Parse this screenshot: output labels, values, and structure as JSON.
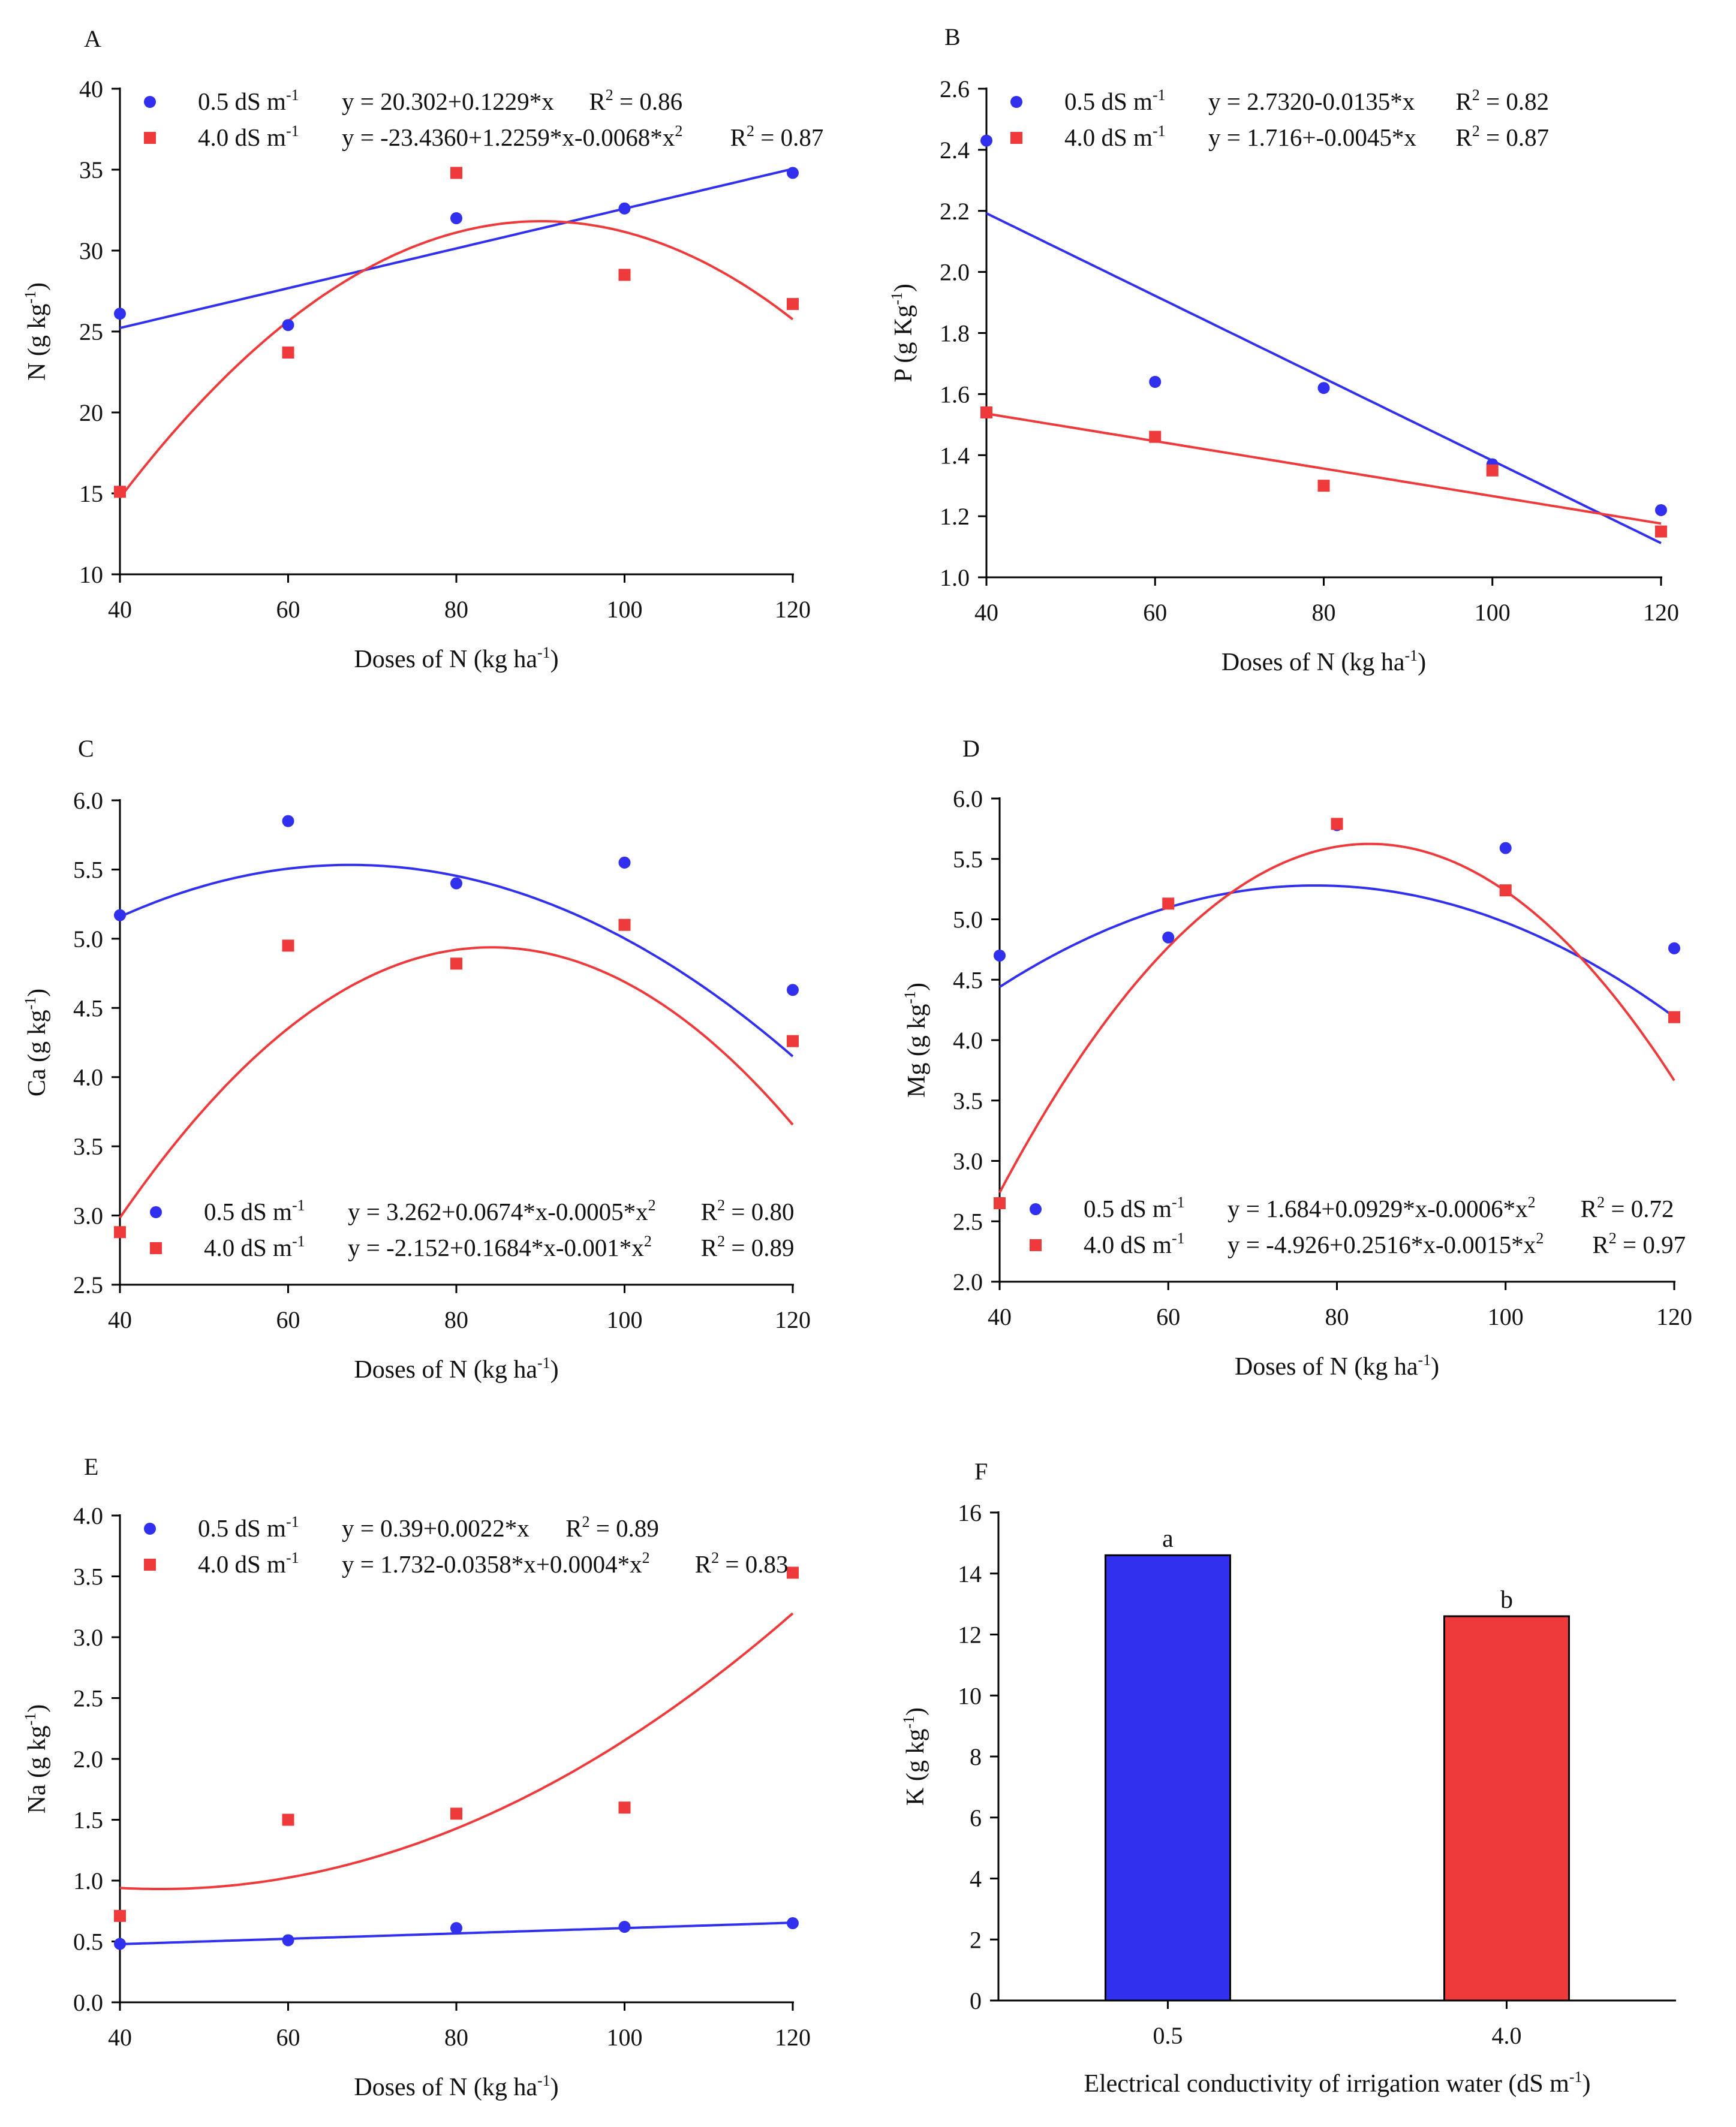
{
  "colors": {
    "low": "#3030ee",
    "high": "#ee3a3a",
    "axis": "#000000"
  },
  "chart_data": [
    {
      "id": "A",
      "type": "scatter",
      "panel_label": "A",
      "xlabel": "Doses of N (kg ha",
      "xlabel_sup": "-1",
      "xlabel_end": ")",
      "ylabel": "N (g kg",
      "ylabel_sup": "-1",
      "ylabel_end": ")",
      "xlim": [
        40,
        120
      ],
      "ylim": [
        10,
        40
      ],
      "xticks": [
        40,
        60,
        80,
        100,
        120
      ],
      "yticks": [
        10,
        15,
        20,
        25,
        30,
        35,
        40
      ],
      "ydec": 0,
      "legend_pos": "top",
      "series": [
        {
          "name": "0.5 dS m",
          "sup": "-1",
          "marker": "circle",
          "color": "#3030ee",
          "x": [
            40,
            60,
            80,
            100,
            120
          ],
          "y": [
            26.1,
            25.4,
            32.0,
            32.6,
            34.8
          ],
          "fit": [
            20.302,
            0.1229
          ],
          "eq": "y = 20.302+0.1229*x",
          "r2": "R2 = 0.86"
        },
        {
          "name": "4.0 dS m",
          "sup": "-1",
          "marker": "square",
          "color": "#ee3a3a",
          "x": [
            40,
            60,
            80,
            100,
            120
          ],
          "y": [
            15.1,
            23.7,
            34.8,
            28.5,
            26.7
          ],
          "fit": [
            -23.436,
            1.2259,
            -0.0068
          ],
          "eq": "y = -23.4360+1.2259*x-0.0068*x2",
          "r2": "R2 = 0.87"
        }
      ]
    },
    {
      "id": "B",
      "type": "scatter",
      "panel_label": "B",
      "xlabel": "Doses of N (kg ha",
      "xlabel_sup": "-1",
      "xlabel_end": ")",
      "ylabel": "P (g Kg",
      "ylabel_sup": "-1",
      "ylabel_end": ")",
      "xlim": [
        40,
        120
      ],
      "ylim": [
        1.0,
        2.6
      ],
      "xticks": [
        40,
        60,
        80,
        100,
        120
      ],
      "yticks": [
        1.0,
        1.2,
        1.4,
        1.6,
        1.8,
        2.0,
        2.2,
        2.4,
        2.6
      ],
      "ydec": 1,
      "legend_pos": "top",
      "series": [
        {
          "name": "0.5 dS m",
          "sup": "-1",
          "marker": "circle",
          "color": "#3030ee",
          "x": [
            40,
            60,
            80,
            100,
            120
          ],
          "y": [
            2.43,
            1.64,
            1.62,
            1.37,
            1.22
          ],
          "fit": [
            2.732,
            -0.0135
          ],
          "eq": "y = 2.7320-0.0135*x",
          "r2": "R2 = 0.82"
        },
        {
          "name": "4.0 dS m",
          "sup": "-1",
          "marker": "square",
          "color": "#ee3a3a",
          "x": [
            40,
            60,
            80,
            100,
            120
          ],
          "y": [
            1.54,
            1.46,
            1.3,
            1.35,
            1.15
          ],
          "fit": [
            1.716,
            -0.0045
          ],
          "eq": "y = 1.716+-0.0045*x",
          "r2": "R2 = 0.87"
        }
      ]
    },
    {
      "id": "C",
      "type": "scatter",
      "panel_label": "C",
      "xlabel": "Doses of N (kg ha",
      "xlabel_sup": "-1",
      "xlabel_end": ")",
      "ylabel": "Ca (g kg",
      "ylabel_sup": "-1",
      "ylabel_end": ")",
      "xlim": [
        40,
        120
      ],
      "ylim": [
        2.5,
        6.0
      ],
      "xticks": [
        40,
        60,
        80,
        100,
        120
      ],
      "yticks": [
        2.5,
        3.0,
        3.5,
        4.0,
        4.5,
        5.0,
        5.5,
        6.0
      ],
      "ydec": 1,
      "legend_pos": "bottom",
      "series": [
        {
          "name": "0.5 dS m",
          "sup": "-1",
          "marker": "circle",
          "color": "#3030ee",
          "x": [
            40,
            60,
            80,
            100,
            120
          ],
          "y": [
            5.17,
            5.85,
            5.4,
            5.55,
            4.63
          ],
          "fit": [
            3.262,
            0.0674,
            -0.0005
          ],
          "eq": "y = 3.262+0.0674*x-0.0005*x2",
          "r2": "R2 = 0.80"
        },
        {
          "name": "4.0 dS m",
          "sup": "-1",
          "marker": "square",
          "color": "#ee3a3a",
          "x": [
            40,
            60,
            80,
            100,
            120
          ],
          "y": [
            2.88,
            4.95,
            4.82,
            5.1,
            4.26
          ],
          "fit": [
            -2.152,
            0.1684,
            -0.001
          ],
          "eq": "y = -2.152+0.1684*x-0.001*x2",
          "r2": "R2 = 0.89"
        }
      ]
    },
    {
      "id": "D",
      "type": "scatter",
      "panel_label": "D",
      "xlabel": "Doses of N (kg ha",
      "xlabel_sup": "-1",
      "xlabel_end": ")",
      "ylabel": "Mg (g kg",
      "ylabel_sup": "-1",
      "ylabel_end": ")",
      "xlim": [
        40,
        120
      ],
      "ylim": [
        2.0,
        6.0
      ],
      "xticks": [
        40,
        60,
        80,
        100,
        120
      ],
      "yticks": [
        2.0,
        2.5,
        3.0,
        3.5,
        4.0,
        4.5,
        5.0,
        5.5,
        6.0
      ],
      "ydec": 1,
      "legend_pos": "bottom",
      "series": [
        {
          "name": "0.5 dS m",
          "sup": "-1",
          "marker": "circle",
          "color": "#3030ee",
          "x": [
            40,
            60,
            80,
            100,
            120
          ],
          "y": [
            4.7,
            4.85,
            5.78,
            5.59,
            4.76
          ],
          "fit": [
            1.684,
            0.0929,
            -0.0006
          ],
          "eq": "y = 1.684+0.0929*x-0.0006*x2",
          "r2": "R2 = 0.72"
        },
        {
          "name": "4.0 dS m",
          "sup": "-1",
          "marker": "square",
          "color": "#ee3a3a",
          "x": [
            40,
            60,
            80,
            100,
            120
          ],
          "y": [
            2.65,
            5.13,
            5.79,
            5.24,
            4.19
          ],
          "fit": [
            -4.926,
            0.2516,
            -0.0015
          ],
          "eq": "y = -4.926+0.2516*x-0.0015*x2",
          "r2": "R2 = 0.97"
        }
      ]
    },
    {
      "id": "E",
      "type": "scatter",
      "panel_label": "E",
      "xlabel": "Doses of N (kg ha",
      "xlabel_sup": "-1",
      "xlabel_end": ")",
      "ylabel": "Na (g kg",
      "ylabel_sup": "-1",
      "ylabel_end": ")",
      "xlim": [
        40,
        120
      ],
      "ylim": [
        0.0,
        4.0
      ],
      "xticks": [
        40,
        60,
        80,
        100,
        120
      ],
      "yticks": [
        0.0,
        0.5,
        1.0,
        1.5,
        2.0,
        2.5,
        3.0,
        3.5,
        4.0
      ],
      "ydec": 1,
      "legend_pos": "top",
      "series": [
        {
          "name": "0.5 dS m",
          "sup": "-1",
          "marker": "circle",
          "color": "#3030ee",
          "x": [
            40,
            60,
            80,
            100,
            120
          ],
          "y": [
            0.48,
            0.51,
            0.61,
            0.62,
            0.65
          ],
          "fit": [
            0.39,
            0.0022
          ],
          "eq": "y = 0.39+0.0022*x",
          "r2": "R2 = 0.89"
        },
        {
          "name": "4.0 dS m",
          "sup": "-1",
          "marker": "square",
          "color": "#ee3a3a",
          "x": [
            40,
            60,
            80,
            100,
            120
          ],
          "y": [
            0.71,
            1.5,
            1.55,
            1.6,
            3.53
          ],
          "fit": [
            1.732,
            -0.0358,
            0.0004
          ],
          "eq": "y = 1.732-0.0358*x+0.0004*x2",
          "r2": "R2 = 0.83"
        }
      ]
    },
    {
      "id": "F",
      "type": "bar",
      "panel_label": "F",
      "xlabel": "Electrical conductivity of irrigation water (dS m",
      "xlabel_sup": "-1",
      "xlabel_end": ")",
      "ylabel": "K (g kg",
      "ylabel_sup": "-1",
      "ylabel_end": ")",
      "ylim": [
        0,
        16
      ],
      "yticks": [
        0,
        2,
        4,
        6,
        8,
        10,
        12,
        14,
        16
      ],
      "ydec": 0,
      "categories": [
        "0.5",
        "4.0"
      ],
      "values": [
        14.6,
        12.6
      ],
      "letters": [
        "a",
        "b"
      ],
      "colors": [
        "#3030ee",
        "#ee3a3a"
      ]
    }
  ]
}
